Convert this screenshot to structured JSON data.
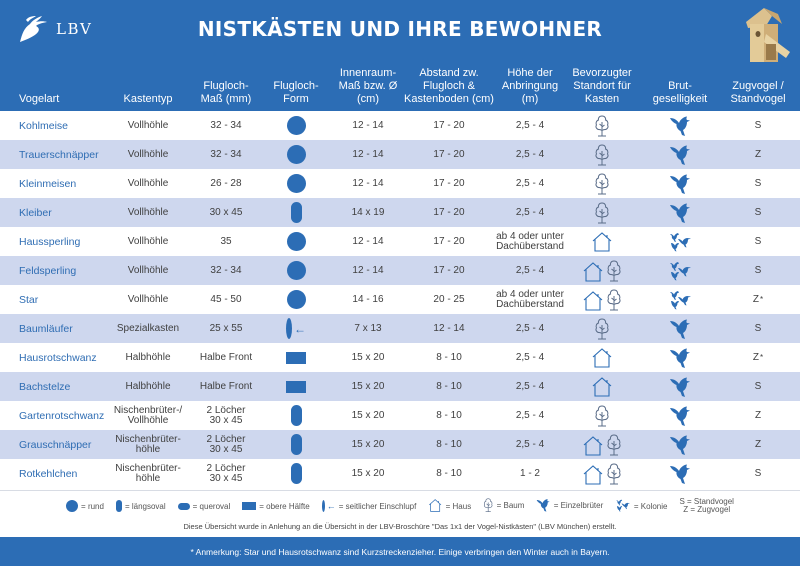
{
  "header": {
    "logo_text": "LBV",
    "title": "NISTKÄSTEN UND IHRE BEWOHNER",
    "columns": [
      "Vogelart",
      "Kastentyp",
      "Flugloch-\nMaß (mm)",
      "Flugloch-\nForm",
      "Innenraum-\nMaß bzw. Ø\n(cm)",
      "Abstand zw.\nFlugloch &\nKastenboden (cm)",
      "Höhe der\nAnbringung\n(m)",
      "Bevorzugter\nStandort für\nKasten",
      "Brut-\ngeselligkeit",
      "Zugvogel /\nStandvogel"
    ]
  },
  "colors": {
    "brand_blue": "#2c6db5",
    "stripe": "#ced7ee",
    "name_text": "#2f6db3"
  },
  "rows": [
    {
      "vogelart": "Kohlmeise",
      "kastentyp": "Vollhöhle",
      "flugloch_mass": "32 - 34",
      "form": "rund",
      "innenraum": "12 - 14",
      "abstand": "17 - 20",
      "hoehe": "2,5 - 4",
      "standort": [
        "baum"
      ],
      "brut": "einzelbrueter",
      "zug": "S",
      "asterisk": ""
    },
    {
      "vogelart": "Trauerschnäpper",
      "kastentyp": "Vollhöhle",
      "flugloch_mass": "32 - 34",
      "form": "rund",
      "innenraum": "12 - 14",
      "abstand": "17 - 20",
      "hoehe": "2,5 - 4",
      "standort": [
        "baum"
      ],
      "brut": "einzelbrueter",
      "zug": "Z",
      "asterisk": ""
    },
    {
      "vogelart": "Kleinmeisen",
      "kastentyp": "Vollhöhle",
      "flugloch_mass": "26 - 28",
      "form": "rund",
      "innenraum": "12 - 14",
      "abstand": "17 - 20",
      "hoehe": "2,5 - 4",
      "standort": [
        "baum"
      ],
      "brut": "einzelbrueter",
      "zug": "S",
      "asterisk": ""
    },
    {
      "vogelart": "Kleiber",
      "kastentyp": "Vollhöhle",
      "flugloch_mass": "30 x 45",
      "form": "laengsoval",
      "innenraum": "14 x 19",
      "abstand": "17 - 20",
      "hoehe": "2,5 - 4",
      "standort": [
        "baum"
      ],
      "brut": "einzelbrueter",
      "zug": "S",
      "asterisk": ""
    },
    {
      "vogelart": "Haussperling",
      "kastentyp": "Vollhöhle",
      "flugloch_mass": "35",
      "form": "rund",
      "innenraum": "12 - 14",
      "abstand": "17 - 20",
      "hoehe": "ab 4 oder unter\nDachüberstand",
      "standort": [
        "haus"
      ],
      "brut": "kolonie",
      "zug": "S",
      "asterisk": ""
    },
    {
      "vogelart": "Feldsperling",
      "kastentyp": "Vollhöhle",
      "flugloch_mass": "32 - 34",
      "form": "rund",
      "innenraum": "12 - 14",
      "abstand": "17 - 20",
      "hoehe": "2,5 - 4",
      "standort": [
        "haus",
        "baum"
      ],
      "brut": "kolonie",
      "zug": "S",
      "asterisk": ""
    },
    {
      "vogelart": "Star",
      "kastentyp": "Vollhöhle",
      "flugloch_mass": "45 - 50",
      "form": "rund",
      "innenraum": "14 - 16",
      "abstand": "20 - 25",
      "hoehe": "ab 4 oder unter\nDachüberstand",
      "standort": [
        "haus",
        "baum"
      ],
      "brut": "kolonie",
      "zug": "Z",
      "asterisk": "*"
    },
    {
      "vogelart": "Baumläufer",
      "kastentyp": "Spezialkasten",
      "flugloch_mass": "25 x 55",
      "form": "seitlich",
      "innenraum": "7 x 13",
      "abstand": "12 - 14",
      "hoehe": "2,5 - 4",
      "standort": [
        "baum"
      ],
      "brut": "einzelbrueter",
      "zug": "S",
      "asterisk": ""
    },
    {
      "vogelart": "Hausrotschwanz",
      "kastentyp": "Halbhöhle",
      "flugloch_mass": "Halbe Front",
      "form": "obere-haelfte",
      "innenraum": "15 x 20",
      "abstand": "8 - 10",
      "hoehe": "2,5 - 4",
      "standort": [
        "haus"
      ],
      "brut": "einzelbrueter",
      "zug": "Z",
      "asterisk": "*"
    },
    {
      "vogelart": "Bachstelze",
      "kastentyp": "Halbhöhle",
      "flugloch_mass": "Halbe Front",
      "form": "obere-haelfte",
      "innenraum": "15 x 20",
      "abstand": "8 - 10",
      "hoehe": "2,5 - 4",
      "standort": [
        "haus"
      ],
      "brut": "einzelbrueter",
      "zug": "S",
      "asterisk": ""
    },
    {
      "vogelart": "Gartenrotschwanz",
      "kastentyp": "Nischenbrüter-/\nVollhöhle",
      "flugloch_mass": "2 Löcher\n30 x 45",
      "form": "laengsoval",
      "innenraum": "15 x 20",
      "abstand": "8 - 10",
      "hoehe": "2,5 - 4",
      "standort": [
        "baum"
      ],
      "brut": "einzelbrueter",
      "zug": "Z",
      "asterisk": ""
    },
    {
      "vogelart": "Grauschnäpper",
      "kastentyp": "Nischenbrüter-\nhöhle",
      "flugloch_mass": "2 Löcher\n30 x 45",
      "form": "laengsoval",
      "innenraum": "15 x 20",
      "abstand": "8 - 10",
      "hoehe": "2,5 - 4",
      "standort": [
        "haus",
        "baum"
      ],
      "brut": "einzelbrueter",
      "zug": "Z",
      "asterisk": ""
    },
    {
      "vogelart": "Rotkehlchen",
      "kastentyp": "Nischenbrüter-\nhöhle",
      "flugloch_mass": "2 Löcher\n30 x 45",
      "form": "laengsoval",
      "innenraum": "15 x 20",
      "abstand": "8 - 10",
      "hoehe": "1 - 2",
      "standort": [
        "haus",
        "baum"
      ],
      "brut": "einzelbrueter",
      "zug": "S",
      "asterisk": ""
    }
  ],
  "legend": {
    "rund": "= rund",
    "laengsoval": "= längsoval",
    "queroval": "= queroval",
    "obere_haelfte": "= obere Hälfte",
    "seitlich": "= seitlicher Einschlupf",
    "haus": "= Haus",
    "baum": "= Baum",
    "einzelbrueter": "= Einzelbrüter",
    "kolonie": "= Kolonie",
    "sz": "S = Standvogel\nZ = Zugvogel"
  },
  "credit": "Diese Übersicht wurde in Anlehung an die Übersicht in der LBV-Broschüre \"Das 1x1 der Vogel-Nistkästen\" (LBV München) erstellt.",
  "footer": "* Anmerkung: Star und Hausrotschwanz sind Kurzstreckenzieher. Einige verbringen den Winter auch in Bayern."
}
